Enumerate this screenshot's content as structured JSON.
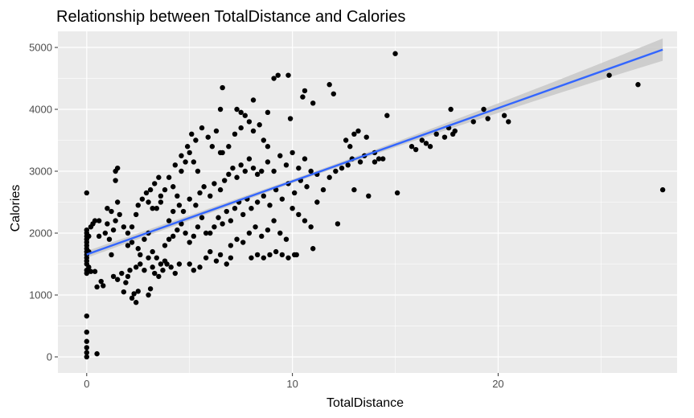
{
  "chart_data": {
    "type": "scatter",
    "title": "Relationship between TotalDistance and Calories",
    "xlabel": "TotalDistance",
    "ylabel": "Calories",
    "xlim": [
      -1.4,
      28.7
    ],
    "ylim": [
      -260,
      5260
    ],
    "x_ticks": [
      0,
      10,
      20
    ],
    "x_tick_labels": [
      "0",
      "10",
      "20"
    ],
    "y_ticks": [
      0,
      1000,
      2000,
      3000,
      4000,
      5000
    ],
    "y_tick_labels": [
      "0",
      "1000",
      "2000",
      "3000",
      "4000",
      "5000"
    ],
    "grid": true,
    "legend": "none",
    "colors": {
      "panel": "#ebebeb",
      "grid_major": "#ffffff",
      "points": "#000000",
      "trend_line": "#3366ff",
      "confidence_band": "#c8c8c8"
    },
    "trend_line": {
      "type": "linear",
      "start": [
        0,
        1655
      ],
      "end": [
        28.0,
        4965
      ],
      "ci_halfwidth_start": 55,
      "ci_halfwidth_mid": 30,
      "ci_halfwidth_end": 180
    },
    "points": [
      [
        0,
        0
      ],
      [
        0,
        70
      ],
      [
        0,
        150
      ],
      [
        0,
        250
      ],
      [
        0,
        400
      ],
      [
        0,
        660
      ],
      [
        0.5,
        50
      ],
      [
        0,
        2650
      ],
      [
        0,
        1350
      ],
      [
        0,
        1400
      ],
      [
        0,
        1500
      ],
      [
        0,
        1550
      ],
      [
        0,
        1600
      ],
      [
        0,
        1650
      ],
      [
        0,
        1700
      ],
      [
        0,
        1750
      ],
      [
        0,
        1800
      ],
      [
        0,
        1850
      ],
      [
        0,
        1900
      ],
      [
        0,
        1950
      ],
      [
        0,
        2000
      ],
      [
        0,
        2050
      ],
      [
        0.1,
        1450
      ],
      [
        0.1,
        1700
      ],
      [
        0.1,
        1950
      ],
      [
        0.2,
        2100
      ],
      [
        0.3,
        2150
      ],
      [
        0.4,
        2200
      ],
      [
        0.6,
        2200
      ],
      [
        0.2,
        1380
      ],
      [
        0.4,
        1380
      ],
      [
        0.5,
        1130
      ],
      [
        0.7,
        1220
      ],
      [
        0.8,
        1150
      ],
      [
        0.6,
        1950
      ],
      [
        0.9,
        2000
      ],
      [
        1.0,
        2150
      ],
      [
        1.1,
        1900
      ],
      [
        1.2,
        1650
      ],
      [
        1.3,
        2050
      ],
      [
        1.0,
        2400
      ],
      [
        1.2,
        2350
      ],
      [
        1.4,
        2200
      ],
      [
        1.5,
        2500
      ],
      [
        1.6,
        2300
      ],
      [
        1.8,
        2100
      ],
      [
        1.4,
        2850
      ],
      [
        1.4,
        3000
      ],
      [
        1.5,
        3050
      ],
      [
        1.3,
        1300
      ],
      [
        1.5,
        1250
      ],
      [
        1.7,
        1350
      ],
      [
        1.9,
        1200
      ],
      [
        2.0,
        1300
      ],
      [
        2.1,
        1400
      ],
      [
        1.8,
        1050
      ],
      [
        2.3,
        1020
      ],
      [
        2.2,
        950
      ],
      [
        2.4,
        880
      ],
      [
        2.5,
        1060
      ],
      [
        2.6,
        1500
      ],
      [
        2.4,
        1450
      ],
      [
        2.8,
        1400
      ],
      [
        2.0,
        2000
      ],
      [
        2.2,
        2100
      ],
      [
        2.4,
        2300
      ],
      [
        2.5,
        2450
      ],
      [
        2.7,
        2550
      ],
      [
        2.9,
        2650
      ],
      [
        3.0,
        2500
      ],
      [
        3.2,
        2400
      ],
      [
        3.1,
        2700
      ],
      [
        3.3,
        2800
      ],
      [
        3.5,
        2900
      ],
      [
        3.6,
        2600
      ],
      [
        2.0,
        1800
      ],
      [
        2.2,
        1850
      ],
      [
        2.5,
        1750
      ],
      [
        2.8,
        1900
      ],
      [
        3.0,
        2000
      ],
      [
        3.2,
        1700
      ],
      [
        3.4,
        1600
      ],
      [
        3.6,
        1500
      ],
      [
        3.8,
        1550
      ],
      [
        3.0,
        1600
      ],
      [
        2.6,
        1650
      ],
      [
        3.0,
        1000
      ],
      [
        3.1,
        1100
      ],
      [
        3.2,
        1450
      ],
      [
        3.3,
        1350
      ],
      [
        3.5,
        1300
      ],
      [
        3.7,
        1400
      ],
      [
        3.9,
        1500
      ],
      [
        4.1,
        1450
      ],
      [
        4.3,
        1350
      ],
      [
        4.5,
        1500
      ],
      [
        3.4,
        2400
      ],
      [
        3.6,
        2500
      ],
      [
        3.8,
        2700
      ],
      [
        4.0,
        2900
      ],
      [
        4.2,
        2750
      ],
      [
        4.4,
        2600
      ],
      [
        4.6,
        3000
      ],
      [
        4.8,
        3150
      ],
      [
        5.0,
        3300
      ],
      [
        5.2,
        3150
      ],
      [
        5.4,
        3000
      ],
      [
        3.8,
        1800
      ],
      [
        4.0,
        1900
      ],
      [
        4.2,
        1950
      ],
      [
        4.4,
        2050
      ],
      [
        4.6,
        2150
      ],
      [
        4.8,
        2000
      ],
      [
        5.0,
        1850
      ],
      [
        5.2,
        1950
      ],
      [
        5.4,
        2100
      ],
      [
        5.6,
        2250
      ],
      [
        5.8,
        2000
      ],
      [
        4.0,
        2200
      ],
      [
        4.2,
        2350
      ],
      [
        4.5,
        2450
      ],
      [
        4.7,
        2350
      ],
      [
        5.0,
        2550
      ],
      [
        5.3,
        2450
      ],
      [
        5.5,
        2650
      ],
      [
        5.7,
        2750
      ],
      [
        6.0,
        2600
      ],
      [
        6.2,
        2800
      ],
      [
        4.3,
        3100
      ],
      [
        4.6,
        3250
      ],
      [
        4.9,
        3400
      ],
      [
        5.1,
        3600
      ],
      [
        5.3,
        3500
      ],
      [
        5.6,
        3700
      ],
      [
        5.9,
        3550
      ],
      [
        6.1,
        3400
      ],
      [
        6.3,
        3650
      ],
      [
        6.5,
        3300
      ],
      [
        5.0,
        1500
      ],
      [
        5.2,
        1400
      ],
      [
        5.5,
        1450
      ],
      [
        5.8,
        1600
      ],
      [
        6.0,
        1700
      ],
      [
        6.3,
        1550
      ],
      [
        6.5,
        1650
      ],
      [
        6.8,
        1500
      ],
      [
        7.0,
        1600
      ],
      [
        6.0,
        2000
      ],
      [
        6.2,
        2100
      ],
      [
        6.4,
        2250
      ],
      [
        6.6,
        2150
      ],
      [
        6.8,
        2350
      ],
      [
        7.0,
        2200
      ],
      [
        7.2,
        2400
      ],
      [
        7.4,
        2500
      ],
      [
        7.6,
        2300
      ],
      [
        7.8,
        2550
      ],
      [
        6.5,
        2700
      ],
      [
        6.7,
        2850
      ],
      [
        6.9,
        2950
      ],
      [
        7.1,
        3050
      ],
      [
        7.3,
        2900
      ],
      [
        7.5,
        3100
      ],
      [
        7.7,
        3000
      ],
      [
        7.9,
        3200
      ],
      [
        8.1,
        3050
      ],
      [
        8.3,
        2950
      ],
      [
        6.6,
        3300
      ],
      [
        6.9,
        3400
      ],
      [
        7.2,
        3600
      ],
      [
        7.5,
        3700
      ],
      [
        7.7,
        3900
      ],
      [
        7.9,
        3800
      ],
      [
        8.1,
        3650
      ],
      [
        8.4,
        3750
      ],
      [
        8.6,
        3500
      ],
      [
        8.8,
        3400
      ],
      [
        7.0,
        1800
      ],
      [
        7.3,
        1900
      ],
      [
        7.6,
        1850
      ],
      [
        7.9,
        2000
      ],
      [
        8.2,
        2100
      ],
      [
        8.5,
        1950
      ],
      [
        8.8,
        2050
      ],
      [
        9.1,
        2200
      ],
      [
        9.4,
        2000
      ],
      [
        9.7,
        1900
      ],
      [
        8.0,
        1600
      ],
      [
        8.3,
        1650
      ],
      [
        8.6,
        1600
      ],
      [
        8.9,
        1650
      ],
      [
        9.2,
        1700
      ],
      [
        9.5,
        1650
      ],
      [
        9.8,
        1600
      ],
      [
        10.1,
        1650
      ],
      [
        8.0,
        2400
      ],
      [
        8.3,
        2500
      ],
      [
        8.6,
        2600
      ],
      [
        8.9,
        2450
      ],
      [
        9.2,
        2700
      ],
      [
        9.5,
        2550
      ],
      [
        9.8,
        2800
      ],
      [
        10.1,
        2650
      ],
      [
        10.4,
        2850
      ],
      [
        10.7,
        2750
      ],
      [
        8.5,
        3000
      ],
      [
        8.8,
        3150
      ],
      [
        9.1,
        3000
      ],
      [
        9.4,
        3250
      ],
      [
        9.7,
        3100
      ],
      [
        10.0,
        3300
      ],
      [
        10.3,
        3050
      ],
      [
        10.6,
        3200
      ],
      [
        10.9,
        3000
      ],
      [
        11.2,
        2950
      ],
      [
        7.5,
        3950
      ],
      [
        7.3,
        4000
      ],
      [
        6.5,
        4000
      ],
      [
        6.6,
        4350
      ],
      [
        8.1,
        4150
      ],
      [
        8.8,
        3950
      ],
      [
        9.3,
        4550
      ],
      [
        9.1,
        4500
      ],
      [
        9.8,
        4550
      ],
      [
        9.9,
        3850
      ],
      [
        10.5,
        4200
      ],
      [
        10.6,
        4300
      ],
      [
        11.0,
        4100
      ],
      [
        11.8,
        4400
      ],
      [
        12.0,
        4250
      ],
      [
        10.0,
        2400
      ],
      [
        10.3,
        2300
      ],
      [
        10.6,
        2200
      ],
      [
        10.9,
        2100
      ],
      [
        11.2,
        2500
      ],
      [
        11.5,
        2700
      ],
      [
        11.8,
        2900
      ],
      [
        12.1,
        3000
      ],
      [
        12.4,
        3050
      ],
      [
        12.7,
        3100
      ],
      [
        10.2,
        1650
      ],
      [
        11.0,
        1750
      ],
      [
        12.2,
        2150
      ],
      [
        12.6,
        3500
      ],
      [
        12.8,
        3400
      ],
      [
        13.0,
        3600
      ],
      [
        13.2,
        3650
      ],
      [
        13.6,
        3550
      ],
      [
        14.0,
        3300
      ],
      [
        14.4,
        3200
      ],
      [
        14.6,
        3900
      ],
      [
        12.9,
        3200
      ],
      [
        13.3,
        3150
      ],
      [
        13.5,
        3250
      ],
      [
        14.0,
        3150
      ],
      [
        14.2,
        3200
      ],
      [
        13.0,
        2700
      ],
      [
        13.7,
        2600
      ],
      [
        15.0,
        4900
      ],
      [
        15.1,
        2650
      ],
      [
        15.8,
        3400
      ],
      [
        16.0,
        3350
      ],
      [
        16.3,
        3500
      ],
      [
        16.5,
        3450
      ],
      [
        16.7,
        3400
      ],
      [
        17.0,
        3600
      ],
      [
        17.4,
        3550
      ],
      [
        17.6,
        3700
      ],
      [
        17.8,
        3600
      ],
      [
        17.9,
        3650
      ],
      [
        17.7,
        4000
      ],
      [
        18.8,
        3800
      ],
      [
        19.3,
        4000
      ],
      [
        19.5,
        3850
      ],
      [
        20.3,
        3900
      ],
      [
        20.5,
        3800
      ],
      [
        25.4,
        4550
      ],
      [
        26.8,
        4400
      ],
      [
        28.0,
        2700
      ]
    ]
  }
}
